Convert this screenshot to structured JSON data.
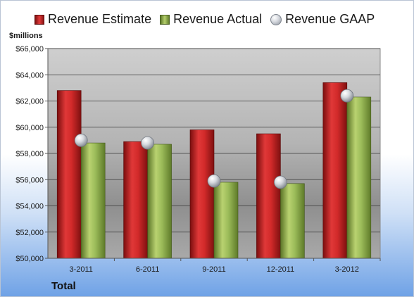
{
  "legend": {
    "estimate_label": "Revenue Estimate",
    "actual_label": "Revenue Actual",
    "gaap_label": "Revenue GAAP"
  },
  "unit_label": "$millions",
  "footer_label": "Total",
  "colors": {
    "estimate": "#d42a2a",
    "actual": "#9bbb59",
    "gaap": "#c9ccd2"
  },
  "chart_data": {
    "type": "bar",
    "categories": [
      "3-2011",
      "6-2011",
      "9-2011",
      "12-2011",
      "3-2012"
    ],
    "series": [
      {
        "name": "Revenue Estimate",
        "kind": "bar",
        "values": [
          62800,
          58900,
          59800,
          59500,
          63400
        ]
      },
      {
        "name": "Revenue Actual",
        "kind": "bar",
        "values": [
          58800,
          58700,
          55800,
          55700,
          62300
        ]
      },
      {
        "name": "Revenue GAAP",
        "kind": "marker",
        "values": [
          59000,
          58800,
          55900,
          55800,
          62400
        ]
      }
    ],
    "ylim": [
      50000,
      66000
    ],
    "yticks": [
      50000,
      52000,
      54000,
      56000,
      58000,
      60000,
      62000,
      64000,
      66000
    ],
    "ytick_labels": [
      "$50,000",
      "$52,000",
      "$54,000",
      "$56,000",
      "$58,000",
      "$60,000",
      "$62,000",
      "$64,000",
      "$66,000"
    ],
    "grid": true,
    "legend_position": "top"
  }
}
